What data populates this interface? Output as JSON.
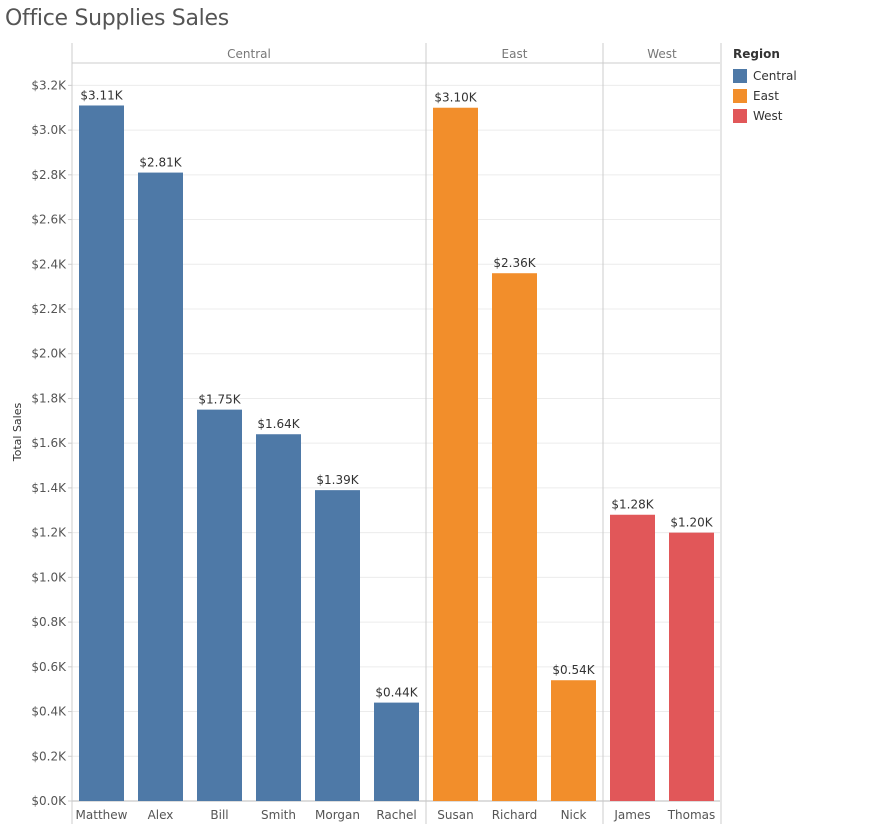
{
  "chart_data": {
    "type": "bar",
    "title": "Office Supplies Sales",
    "ylabel": "Total Sales",
    "xlabel": "",
    "ylim": [
      0,
      3300
    ],
    "yticks": [
      0,
      200,
      400,
      600,
      800,
      1000,
      1200,
      1400,
      1600,
      1800,
      2000,
      2200,
      2400,
      2600,
      2800,
      3000,
      3200
    ],
    "ytick_labels": [
      "$0.0K",
      "$0.2K",
      "$0.4K",
      "$0.6K",
      "$0.8K",
      "$1.0K",
      "$1.2K",
      "$1.4K",
      "$1.6K",
      "$1.8K",
      "$2.0K",
      "$2.2K",
      "$2.4K",
      "$2.6K",
      "$2.8K",
      "$3.0K",
      "$3.2K"
    ],
    "grid": true,
    "legend_position": "right",
    "legend_title": "Region",
    "groups": [
      {
        "name": "Central",
        "color": "#4E79A7",
        "categories": [
          "Matthew",
          "Alex",
          "Bill",
          "Smith",
          "Morgan",
          "Rachel"
        ],
        "values": [
          3110,
          2810,
          1750,
          1640,
          1390,
          440
        ],
        "labels": [
          "$3.11K",
          "$2.81K",
          "$1.75K",
          "$1.64K",
          "$1.39K",
          "$0.44K"
        ]
      },
      {
        "name": "East",
        "color": "#F28E2B",
        "categories": [
          "Susan",
          "Richard",
          "Nick"
        ],
        "values": [
          3100,
          2360,
          540
        ],
        "labels": [
          "$3.10K",
          "$2.36K",
          "$0.54K"
        ]
      },
      {
        "name": "West",
        "color": "#E15759",
        "categories": [
          "James",
          "Thomas"
        ],
        "values": [
          1280,
          1200
        ],
        "labels": [
          "$1.28K",
          "$1.20K"
        ]
      }
    ]
  }
}
